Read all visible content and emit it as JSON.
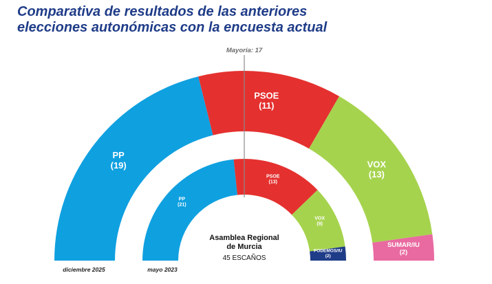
{
  "title_lines": [
    "Comparativa de resultados de las anteriores",
    "elecciones autonómicas con la encuesta actual"
  ],
  "chart_data": {
    "type": "pie",
    "subtype": "parliament-hemicycle",
    "total_seats": 45,
    "majority_label": "Mayoría: 17",
    "center_title_lines": [
      "Asamblea Regional",
      "de Murcia"
    ],
    "center_subtitle": "45 ESCAÑOS",
    "rings": [
      {
        "name": "diciembre 2025",
        "seats": [
          {
            "party": "PP",
            "value": 19,
            "label": "(19)",
            "color": "#0fa0e0"
          },
          {
            "party": "PSOE",
            "value": 11,
            "label": "(11)",
            "color": "#e4312f"
          },
          {
            "party": "VOX",
            "value": 13,
            "label": "(13)",
            "color": "#a6d34e"
          },
          {
            "party": "SUMAR/IU",
            "value": 2,
            "label": "(2)",
            "color": "#e96aa0"
          }
        ]
      },
      {
        "name": "mayo 2023",
        "seats": [
          {
            "party": "PP",
            "value": 21,
            "label": "(21)",
            "color": "#0fa0e0"
          },
          {
            "party": "PSOE",
            "value": 13,
            "label": "(13)",
            "color": "#e4312f"
          },
          {
            "party": "VOX",
            "value": 9,
            "label": "(9)",
            "color": "#a6d34e"
          },
          {
            "party": "PODEMOS/IU",
            "value": 2,
            "label": "(2)",
            "color": "#1f3c88"
          }
        ]
      }
    ]
  }
}
